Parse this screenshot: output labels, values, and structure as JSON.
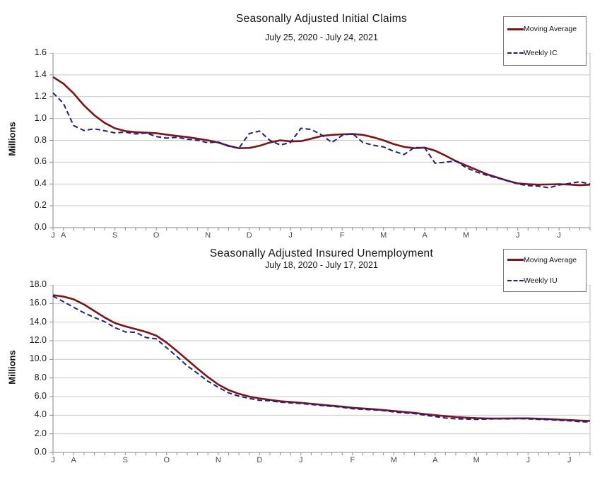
{
  "page": {
    "background": "#ffffff"
  },
  "chart_data": [
    {
      "type": "line",
      "title": "Seasonally Adjusted Initial Claims",
      "subtitle": "July 25, 2020 - July 24, 2021",
      "ylabel": "Millions",
      "ylim": [
        0,
        1.6
      ],
      "ytick_labels": [
        "0.0",
        "0.2",
        "0.4",
        "0.6",
        "0.8",
        "1.0",
        "1.2",
        "1.4",
        "1.6"
      ],
      "x_weeks": 53,
      "grid": true,
      "legend_position": "top-right",
      "colors": {
        "grid": "#c9c9c9",
        "axis": "#8a8a8a",
        "plot_border": "#bdbdbd"
      },
      "month_labels": [
        {
          "label": "J",
          "week": 0
        },
        {
          "label": "A",
          "week": 1
        },
        {
          "label": "S",
          "week": 6
        },
        {
          "label": "O",
          "week": 10
        },
        {
          "label": "N",
          "week": 15
        },
        {
          "label": "D",
          "week": 19
        },
        {
          "label": "J",
          "week": 23
        },
        {
          "label": "F",
          "week": 28
        },
        {
          "label": "M",
          "week": 32
        },
        {
          "label": "A",
          "week": 36
        },
        {
          "label": "M",
          "week": 40
        },
        {
          "label": "J",
          "week": 45
        },
        {
          "label": "J",
          "week": 49
        }
      ],
      "series": [
        {
          "name": "Moving Average",
          "color": "#7d1416",
          "dash": "solid",
          "line_width": 2.6,
          "values": [
            1.38,
            1.32,
            1.23,
            1.12,
            1.03,
            0.96,
            0.91,
            0.885,
            0.875,
            0.87,
            0.865,
            0.852,
            0.84,
            0.83,
            0.815,
            0.8,
            0.78,
            0.75,
            0.728,
            0.73,
            0.75,
            0.78,
            0.8,
            0.79,
            0.792,
            0.815,
            0.84,
            0.85,
            0.855,
            0.858,
            0.85,
            0.828,
            0.8,
            0.765,
            0.74,
            0.728,
            0.733,
            0.705,
            0.66,
            0.61,
            0.57,
            0.53,
            0.49,
            0.46,
            0.43,
            0.405,
            0.398,
            0.394,
            0.396,
            0.398,
            0.395,
            0.388,
            0.394
          ]
        },
        {
          "name": "Weekly IC",
          "color": "#1e1e87",
          "dash": "dashed",
          "line_width": 2,
          "values": [
            1.235,
            1.14,
            0.935,
            0.89,
            0.905,
            0.888,
            0.868,
            0.875,
            0.858,
            0.867,
            0.835,
            0.82,
            0.828,
            0.81,
            0.8,
            0.778,
            0.785,
            0.745,
            0.728,
            0.862,
            0.885,
            0.8,
            0.757,
            0.78,
            0.91,
            0.9,
            0.85,
            0.78,
            0.845,
            0.862,
            0.78,
            0.755,
            0.74,
            0.7,
            0.67,
            0.735,
            0.73,
            0.59,
            0.6,
            0.61,
            0.55,
            0.51,
            0.48,
            0.455,
            0.43,
            0.4,
            0.385,
            0.38,
            0.365,
            0.39,
            0.405,
            0.42,
            0.4
          ]
        }
      ]
    },
    {
      "type": "line",
      "title": "Seasonally Adjusted Insured Unemployment",
      "subtitle": "July 18, 2020 - July 17, 2021",
      "ylabel": "Millions",
      "ylim": [
        0,
        18
      ],
      "ytick_labels": [
        "0.0",
        "2.0",
        "4.0",
        "6.0",
        "8.0",
        "10.0",
        "12.0",
        "14.0",
        "16.0",
        "18.0"
      ],
      "x_weeks": 53,
      "grid": true,
      "legend_position": "top-right",
      "colors": {
        "grid": "#c9c9c9",
        "axis": "#8a8a8a",
        "plot_border": "#bdbdbd"
      },
      "month_labels": [
        {
          "label": "J",
          "week": 0
        },
        {
          "label": "A",
          "week": 2
        },
        {
          "label": "S",
          "week": 7
        },
        {
          "label": "O",
          "week": 11
        },
        {
          "label": "N",
          "week": 16
        },
        {
          "label": "D",
          "week": 20
        },
        {
          "label": "J",
          "week": 24
        },
        {
          "label": "F",
          "week": 29
        },
        {
          "label": "M",
          "week": 33
        },
        {
          "label": "A",
          "week": 37
        },
        {
          "label": "M",
          "week": 41
        },
        {
          "label": "J",
          "week": 46
        },
        {
          "label": "J",
          "week": 50
        }
      ],
      "series": [
        {
          "name": "Moving Average",
          "color": "#7d1416",
          "dash": "solid",
          "line_width": 2.6,
          "values": [
            16.9,
            16.75,
            16.45,
            15.9,
            15.2,
            14.5,
            13.9,
            13.55,
            13.25,
            12.95,
            12.55,
            11.8,
            10.9,
            9.95,
            9.0,
            8.1,
            7.3,
            6.7,
            6.3,
            6.0,
            5.8,
            5.65,
            5.5,
            5.42,
            5.33,
            5.23,
            5.12,
            5.02,
            4.92,
            4.8,
            4.72,
            4.65,
            4.55,
            4.45,
            4.35,
            4.25,
            4.12,
            4.0,
            3.9,
            3.8,
            3.74,
            3.68,
            3.65,
            3.64,
            3.65,
            3.66,
            3.66,
            3.62,
            3.58,
            3.53,
            3.48,
            3.42,
            3.38
          ]
        },
        {
          "name": "Weekly IU",
          "color": "#1e1e87",
          "dash": "dashed",
          "line_width": 2,
          "values": [
            16.8,
            16.2,
            15.6,
            15.0,
            14.5,
            14.05,
            13.4,
            12.95,
            12.9,
            12.35,
            12.2,
            11.25,
            10.3,
            9.3,
            8.5,
            7.65,
            7.0,
            6.4,
            6.05,
            5.8,
            5.6,
            5.55,
            5.4,
            5.33,
            5.25,
            5.15,
            5.05,
            4.95,
            4.85,
            4.7,
            4.62,
            4.58,
            4.5,
            4.35,
            4.25,
            4.18,
            4.0,
            3.85,
            3.7,
            3.6,
            3.58,
            3.55,
            3.58,
            3.62,
            3.6,
            3.64,
            3.6,
            3.55,
            3.52,
            3.45,
            3.4,
            3.3,
            3.27
          ]
        }
      ]
    }
  ]
}
